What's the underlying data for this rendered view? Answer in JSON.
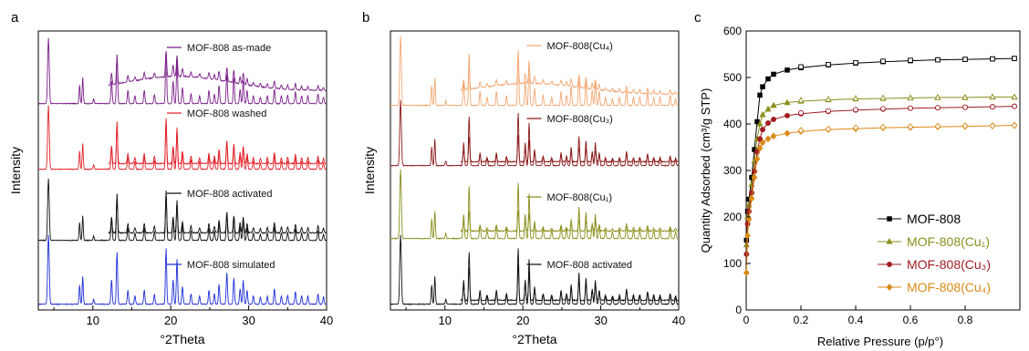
{
  "figure": {
    "panel_labels": [
      "a",
      "b",
      "c"
    ]
  },
  "chart_data": [
    {
      "type": "line",
      "panel": "a",
      "xlabel": "°2Theta",
      "ylabel": "Intensity",
      "xlim": [
        3,
        40
      ],
      "xticks": [
        10,
        20,
        30,
        40
      ],
      "yticks_shown": false,
      "legend_position": "inline, right of each trace",
      "series": [
        {
          "name": "MOF-808 as-made",
          "color": "#7b1f8a",
          "inset_offset": true,
          "peaks_2theta": [
            4.3,
            8.3,
            8.7,
            10.1,
            12.4,
            13.1,
            14.5,
            16.6,
            19.4,
            20.3,
            20.8,
            21.5,
            24.9,
            26.2,
            27.2,
            28.1,
            29.3,
            33.3,
            36.0,
            38.9
          ]
        },
        {
          "name": "MOF-808 washed",
          "color": "#e3232b",
          "inset_offset": true,
          "peaks_2theta": [
            4.3,
            8.3,
            8.7,
            10.1,
            12.4,
            13.1,
            14.5,
            16.6,
            19.4,
            20.3,
            20.8,
            21.5,
            24.9,
            26.2,
            27.2,
            28.1,
            29.3,
            33.3,
            36.0,
            38.9
          ]
        },
        {
          "name": "MOF-808 activated",
          "color": "#111111",
          "inset_offset": true,
          "peaks_2theta": [
            4.3,
            8.3,
            8.7,
            10.1,
            12.4,
            13.1,
            14.5,
            16.6,
            19.4,
            20.3,
            20.8,
            21.5,
            24.9,
            26.2,
            27.2,
            28.1,
            29.3,
            33.3,
            36.0,
            38.9
          ]
        },
        {
          "name": "MOF-808 simulated",
          "color": "#1f2fd6",
          "inset_offset": false,
          "peaks_2theta": [
            4.3,
            8.3,
            8.7,
            10.1,
            12.4,
            13.1,
            14.5,
            16.6,
            19.4,
            20.3,
            20.8,
            21.5,
            24.9,
            26.2,
            27.2,
            28.1,
            29.3,
            33.3,
            36.0,
            38.9
          ]
        }
      ]
    },
    {
      "type": "line",
      "panel": "b",
      "xlabel": "°2Theta",
      "ylabel": "Intensity",
      "xlim": [
        3,
        40
      ],
      "xticks": [
        10,
        20,
        30,
        40
      ],
      "yticks_shown": false,
      "legend_position": "inline, right of each trace",
      "series": [
        {
          "name": "MOF-808(Cu₄)",
          "color": "#f2a873",
          "inset_offset": true
        },
        {
          "name": "MOF-808(Cu₃)",
          "color": "#8b1a1a",
          "inset_offset": true
        },
        {
          "name": "MOF-808(Cu₁)",
          "color": "#8a8f1c",
          "inset_offset": true
        },
        {
          "name": "MOF-808 activated",
          "color": "#111111",
          "inset_offset": true
        }
      ]
    },
    {
      "type": "scatter",
      "panel": "c",
      "xlabel": "Relative Pressure (p/p°)",
      "ylabel": "Quantity Adsorbed (cm³/g STP)",
      "xlim": [
        0,
        1.0
      ],
      "ylim": [
        0,
        600
      ],
      "xticks": [
        0,
        0.2,
        0.4,
        0.6,
        0.8
      ],
      "yticks": [
        0,
        100,
        200,
        300,
        400,
        500,
        600
      ],
      "legend_position": "bottom-right",
      "note": "filled markers = adsorption, open markers = desorption",
      "series": [
        {
          "name": "MOF-808",
          "color": "#000000",
          "marker": "square",
          "plateau": 541,
          "adsorption": [
            [
              0.001,
              150
            ],
            [
              0.005,
              212
            ],
            [
              0.01,
              238
            ],
            [
              0.02,
              285
            ],
            [
              0.03,
              345
            ],
            [
              0.04,
              405
            ],
            [
              0.05,
              462
            ],
            [
              0.06,
              480
            ],
            [
              0.08,
              497
            ],
            [
              0.1,
              507
            ],
            [
              0.15,
              516
            ],
            [
              0.2,
              521
            ],
            [
              0.3,
              527
            ],
            [
              0.4,
              531
            ],
            [
              0.5,
              534
            ],
            [
              0.6,
              536
            ],
            [
              0.7,
              538
            ],
            [
              0.8,
              539
            ],
            [
              0.9,
              540
            ],
            [
              0.98,
              541
            ]
          ],
          "desorption": [
            [
              0.98,
              541
            ],
            [
              0.9,
              540
            ],
            [
              0.8,
              539
            ],
            [
              0.7,
              538
            ],
            [
              0.6,
              537
            ],
            [
              0.5,
              535
            ],
            [
              0.4,
              532
            ],
            [
              0.3,
              528
            ],
            [
              0.2,
              523
            ]
          ]
        },
        {
          "name": "MOF-808(Cu₁)",
          "color": "#8a8f1c",
          "marker": "triangle",
          "plateau": 458,
          "adsorption": [
            [
              0.001,
              140
            ],
            [
              0.005,
              200
            ],
            [
              0.01,
              226
            ],
            [
              0.02,
              270
            ],
            [
              0.03,
              320
            ],
            [
              0.04,
              368
            ],
            [
              0.05,
              400
            ],
            [
              0.06,
              420
            ],
            [
              0.08,
              432
            ],
            [
              0.1,
              440
            ],
            [
              0.15,
              446
            ],
            [
              0.2,
              449
            ],
            [
              0.3,
              452
            ],
            [
              0.4,
              454
            ],
            [
              0.5,
              455
            ],
            [
              0.6,
              456
            ],
            [
              0.7,
              457
            ],
            [
              0.8,
              457
            ],
            [
              0.9,
              458
            ],
            [
              0.98,
              458
            ]
          ],
          "desorption": [
            [
              0.98,
              458
            ],
            [
              0.9,
              458
            ],
            [
              0.8,
              457
            ],
            [
              0.7,
              457
            ],
            [
              0.6,
              456
            ],
            [
              0.5,
              456
            ],
            [
              0.4,
              455
            ],
            [
              0.3,
              453
            ],
            [
              0.2,
              451
            ]
          ]
        },
        {
          "name": "MOF-808(Cu₃)",
          "color": "#a01d22",
          "marker": "circle",
          "plateau": 438,
          "adsorption": [
            [
              0.001,
              120
            ],
            [
              0.005,
              185
            ],
            [
              0.01,
              212
            ],
            [
              0.02,
              252
            ],
            [
              0.03,
              298
            ],
            [
              0.04,
              340
            ],
            [
              0.05,
              368
            ],
            [
              0.06,
              388
            ],
            [
              0.08,
              402
            ],
            [
              0.1,
              410
            ],
            [
              0.15,
              418
            ],
            [
              0.2,
              422
            ],
            [
              0.3,
              427
            ],
            [
              0.4,
              430
            ],
            [
              0.5,
              432
            ],
            [
              0.6,
              434
            ],
            [
              0.7,
              435
            ],
            [
              0.8,
              436
            ],
            [
              0.9,
              437
            ],
            [
              0.98,
              438
            ]
          ],
          "desorption": [
            [
              0.98,
              438
            ],
            [
              0.9,
              437
            ],
            [
              0.8,
              436
            ],
            [
              0.7,
              435
            ],
            [
              0.6,
              434
            ],
            [
              0.5,
              433
            ],
            [
              0.4,
              431
            ],
            [
              0.3,
              428
            ],
            [
              0.2,
              424
            ]
          ]
        },
        {
          "name": "MOF-808(Cu₄)",
          "color": "#d98a17",
          "marker": "diamond",
          "plateau": 397,
          "adsorption": [
            [
              0.001,
              80
            ],
            [
              0.005,
              160
            ],
            [
              0.01,
              195
            ],
            [
              0.02,
              240
            ],
            [
              0.03,
              285
            ],
            [
              0.04,
              325
            ],
            [
              0.05,
              348
            ],
            [
              0.06,
              360
            ],
            [
              0.08,
              368
            ],
            [
              0.1,
              374
            ],
            [
              0.15,
              380
            ],
            [
              0.2,
              384
            ],
            [
              0.3,
              388
            ],
            [
              0.4,
              390
            ],
            [
              0.5,
              392
            ],
            [
              0.6,
              393
            ],
            [
              0.7,
              394
            ],
            [
              0.8,
              395
            ],
            [
              0.9,
              396
            ],
            [
              0.98,
              397
            ]
          ],
          "desorption": [
            [
              0.98,
              397
            ],
            [
              0.9,
              396
            ],
            [
              0.8,
              396
            ],
            [
              0.7,
              395
            ],
            [
              0.6,
              394
            ],
            [
              0.5,
              393
            ],
            [
              0.4,
              392
            ],
            [
              0.3,
              389
            ],
            [
              0.2,
              386
            ]
          ]
        }
      ]
    }
  ]
}
